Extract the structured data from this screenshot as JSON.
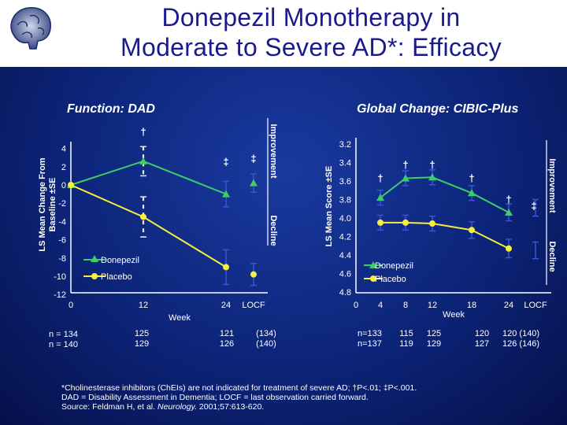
{
  "title": {
    "line1": "Donepezil Monotherapy in",
    "line2": "Moderate to Severe AD*: Efficacy"
  },
  "colors": {
    "donepezil": "#3ecc6a",
    "placebo": "#f6ef3c",
    "errorbar": "#3a52d8",
    "text": "#ffffff"
  },
  "chart_data": [
    {
      "type": "line",
      "title": "Function: DAD",
      "xlabel": "Week",
      "ylabel": "LS Mean Change From Baseline ±SE",
      "x_tick_labels": [
        "0",
        "12",
        "24",
        "LOCF"
      ],
      "y_ticks": [
        "4",
        "2",
        "0",
        "-2",
        "-4",
        "-6",
        "-8",
        "-10",
        "-12"
      ],
      "ylim": [
        -12,
        4
      ],
      "direction_labels": {
        "up": "Improvement",
        "down": "Decline"
      },
      "legend": [
        "Donepezil",
        "Placebo"
      ],
      "series": [
        {
          "name": "Donepezil",
          "x": [
            "0",
            "12",
            "24",
            "LOCF"
          ],
          "values": [
            0,
            2.6,
            -1.0,
            0.2
          ],
          "se": [
            0,
            1.6,
            1.4,
            1.0
          ]
        },
        {
          "name": "Placebo",
          "x": [
            "0",
            "12",
            "24",
            "LOCF"
          ],
          "values": [
            0,
            -3.5,
            -9.0,
            -9.8
          ],
          "se": [
            0,
            2.2,
            1.9,
            1.2
          ]
        }
      ],
      "significance": [
        {
          "x": "12",
          "mark": "†"
        },
        {
          "x": "24",
          "mark": "‡"
        },
        {
          "x": "LOCF",
          "mark": "‡"
        }
      ],
      "n_labels": [
        {
          "x": "0",
          "donepezil": "n = 134",
          "placebo": "n = 140"
        },
        {
          "x": "12",
          "donepezil": "125",
          "placebo": "129"
        },
        {
          "x": "24",
          "donepezil": "121",
          "placebo": "126"
        },
        {
          "x": "LOCF",
          "donepezil": "(134)",
          "placebo": "(140)"
        }
      ]
    },
    {
      "type": "line",
      "title": "Global Change: CIBIC-Plus",
      "xlabel": "Week",
      "ylabel": "LS Mean Score ±SE",
      "x_tick_labels": [
        "0",
        "4",
        "8",
        "12",
        "18",
        "24",
        "LOCF"
      ],
      "y_ticks": [
        "3.2",
        "3.4",
        "3.6",
        "3.8",
        "4.0",
        "4.2",
        "4.4",
        "4.6",
        "4.8"
      ],
      "ylim": [
        4.8,
        3.2
      ],
      "direction_labels": {
        "up": "Improvement",
        "down": "Decline"
      },
      "legend": [
        "Donepezil",
        "Placebo"
      ],
      "series": [
        {
          "name": "Donepezil",
          "x": [
            "4",
            "8",
            "12",
            "18",
            "24"
          ],
          "values": [
            3.78,
            3.57,
            3.56,
            3.73,
            3.94
          ],
          "se": [
            0.08,
            0.08,
            0.08,
            0.08,
            0.09
          ]
        },
        {
          "name": "Placebo",
          "x": [
            "4",
            "8",
            "12",
            "18",
            "24"
          ],
          "values": [
            4.05,
            4.05,
            4.06,
            4.13,
            4.33
          ],
          "se": [
            0.08,
            0.08,
            0.08,
            0.09,
            0.1
          ]
        }
      ],
      "significance": [
        {
          "x": "4",
          "mark": "†"
        },
        {
          "x": "8",
          "mark": "†"
        },
        {
          "x": "12",
          "mark": "†"
        },
        {
          "x": "18",
          "mark": "†"
        },
        {
          "x": "24",
          "mark": "†"
        },
        {
          "x": "LOCF",
          "mark": "‡"
        }
      ],
      "n_labels": [
        {
          "x": "4",
          "donepezil": "n=133",
          "placebo": "n=137"
        },
        {
          "x": "8",
          "donepezil": "115",
          "placebo": "119"
        },
        {
          "x": "12",
          "donepezil": "125",
          "placebo": "129"
        },
        {
          "x": "18",
          "donepezil": "120",
          "placebo": "127"
        },
        {
          "x": "24",
          "donepezil": "120  (140)",
          "placebo": "126  (146)"
        }
      ]
    }
  ],
  "footnote": {
    "line1": "*Cholinesterase inhibitors (ChEIs) are not indicated for treatment of severe AD; †P<.01; ‡P<.001.",
    "line2": "DAD = Disability Assessment in Dementia; LOCF = last observation carried forward.",
    "line3_prefix": "Source: Feldman H, et al. ",
    "line3_journal": "Neurology.",
    "line3_suffix": " 2001;57:613-620."
  }
}
